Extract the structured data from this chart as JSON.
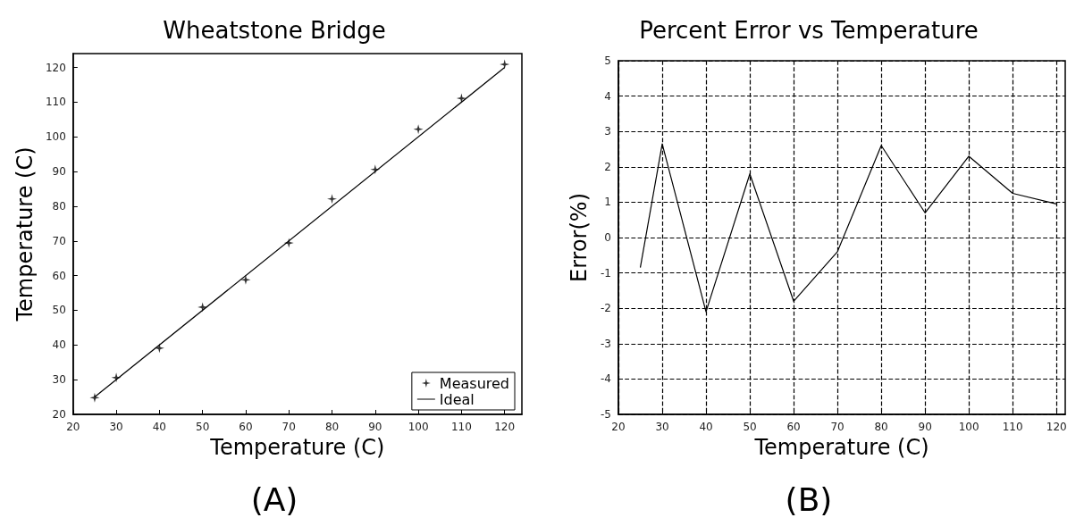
{
  "chart_data": [
    {
      "type": "scatter",
      "title": "Wheatstone Bridge",
      "xlabel": "Temperature (C)",
      "ylabel": "Temperature (C)",
      "annotations": [
        "(A)"
      ],
      "xlim": [
        20,
        124
      ],
      "ylim": [
        20,
        124
      ],
      "xticks": [
        20,
        30,
        40,
        50,
        60,
        70,
        80,
        90,
        100,
        110,
        120
      ],
      "yticks": [
        20,
        30,
        40,
        50,
        60,
        70,
        80,
        90,
        100,
        110,
        120
      ],
      "grid": false,
      "legend": "bottom right",
      "series": [
        {
          "name": "Measured",
          "marker": "star",
          "color": "#000000",
          "x": [
            25,
            30,
            40,
            50,
            60,
            70,
            80,
            90,
            100,
            110,
            120
          ],
          "values": [
            24.8,
            30.6,
            39.1,
            50.9,
            58.8,
            69.4,
            82.1,
            90.6,
            102.2,
            111.1,
            120.9
          ]
        },
        {
          "name": "Ideal",
          "type": "line",
          "marker": "none",
          "line_style": "solid",
          "color": "#000000",
          "x": [
            25,
            120
          ],
          "values": [
            25,
            120
          ]
        }
      ]
    },
    {
      "type": "line",
      "title": "Percent Error vs Temperature",
      "xlabel": "Temperature (C)",
      "ylabel": "Error(%)",
      "annotations": [
        "(B)"
      ],
      "xlim": [
        20,
        122
      ],
      "ylim": [
        -5,
        5
      ],
      "xticks": [
        20,
        30,
        40,
        50,
        60,
        70,
        80,
        90,
        100,
        110,
        120
      ],
      "yticks": [
        -5,
        -4,
        -3,
        -2,
        -1,
        0,
        1,
        2,
        3,
        4,
        5
      ],
      "grid": true,
      "legend": false,
      "marker": "none",
      "line_style": "solid",
      "series": [
        {
          "color": "#000000",
          "x": [
            25,
            30,
            40,
            50,
            60,
            70,
            80,
            90,
            100,
            110,
            120
          ],
          "values": [
            -0.85,
            2.65,
            -2.1,
            1.8,
            -1.8,
            -0.4,
            2.6,
            0.7,
            2.3,
            1.25,
            0.95
          ]
        }
      ]
    }
  ]
}
